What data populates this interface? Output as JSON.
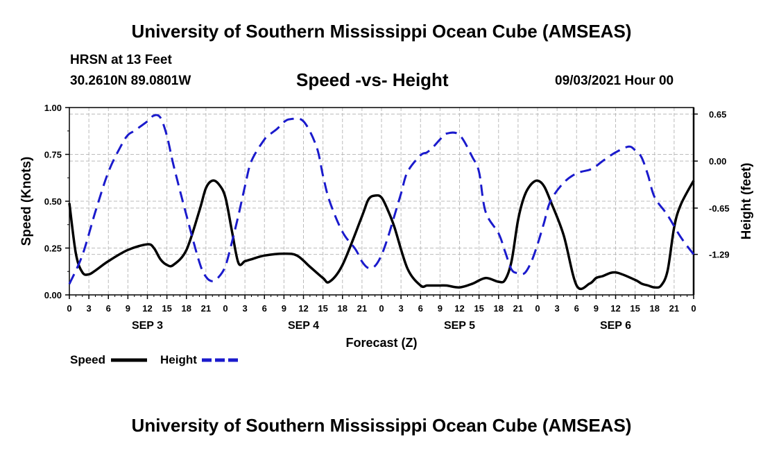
{
  "header": {
    "top_title": "University of Southern Mississippi Ocean Cube (AMSEAS)",
    "station": "HRSN at 13 Feet",
    "coords": "30.2610N  89.0801W",
    "chart_title": "Speed -vs- Height",
    "run_time": "09/03/2021 Hour 00"
  },
  "footer": {
    "bottom_title": "University of Southern Mississippi Ocean Cube (AMSEAS)"
  },
  "legend": {
    "speed_label": "Speed",
    "height_label": "Height"
  },
  "colors": {
    "speed": "#000000",
    "height": "#1a1acc",
    "grid": "#bbbbbb"
  },
  "chart_data": {
    "type": "line",
    "title": "Speed -vs- Height",
    "xlabel": "Forecast (Z)",
    "ylabel": "Speed (Knots)",
    "y2label": "Height (feet)",
    "xlim": [
      0,
      96
    ],
    "ylim": [
      0,
      1.0
    ],
    "y2lim": [
      -1.85,
      0.74
    ],
    "x_tick_values": [
      0,
      3,
      6,
      9,
      12,
      15,
      18,
      21,
      24,
      27,
      30,
      33,
      36,
      39,
      42,
      45,
      48,
      51,
      54,
      57,
      60,
      63,
      66,
      69,
      72,
      75,
      78,
      81,
      84,
      87,
      90,
      93,
      96
    ],
    "x_tick_labels": [
      "0",
      "3",
      "6",
      "9",
      "12",
      "15",
      "18",
      "21",
      "0",
      "3",
      "6",
      "9",
      "12",
      "15",
      "18",
      "21",
      "0",
      "3",
      "6",
      "9",
      "12",
      "15",
      "18",
      "21",
      "0",
      "3",
      "6",
      "9",
      "12",
      "15",
      "18",
      "21",
      "0"
    ],
    "day_labels": [
      {
        "label": "SEP 3",
        "x": 12
      },
      {
        "label": "SEP 4",
        "x": 36
      },
      {
        "label": "SEP 5",
        "x": 60
      },
      {
        "label": "SEP 6",
        "x": 84
      }
    ],
    "y_tick_values": [
      0,
      0.25,
      0.5,
      0.75,
      1.0
    ],
    "y_tick_labels": [
      "0.00",
      "0.25",
      "0.50",
      "0.75",
      "1.00"
    ],
    "y2_tick_values": [
      0.65,
      0.0,
      -0.65,
      -1.29
    ],
    "y2_tick_labels": [
      "0.65",
      "0.00",
      "-0.65",
      "-1.29"
    ],
    "grid": true,
    "series": [
      {
        "name": "Speed",
        "axis": "left",
        "style": "solid",
        "x": [
          0,
          1,
          2,
          3,
          4,
          6,
          9,
          12,
          13,
          14,
          15,
          16,
          18,
          20,
          21,
          22,
          23,
          24,
          25,
          26,
          27,
          28,
          30,
          33,
          35,
          37,
          39,
          40,
          42,
          45,
          46,
          47,
          48,
          49,
          50,
          52,
          54,
          55,
          56,
          57,
          58,
          60,
          62,
          64,
          66,
          67,
          68,
          69,
          70,
          71,
          72,
          73,
          74,
          76,
          78,
          80,
          81,
          82,
          84,
          87,
          88,
          89,
          90,
          91,
          92,
          93,
          94,
          96
        ],
        "y": [
          0.49,
          0.22,
          0.12,
          0.11,
          0.13,
          0.18,
          0.24,
          0.27,
          0.25,
          0.19,
          0.16,
          0.16,
          0.24,
          0.45,
          0.57,
          0.61,
          0.59,
          0.52,
          0.34,
          0.17,
          0.18,
          0.19,
          0.21,
          0.22,
          0.21,
          0.15,
          0.09,
          0.07,
          0.16,
          0.42,
          0.51,
          0.53,
          0.52,
          0.45,
          0.36,
          0.14,
          0.05,
          0.05,
          0.05,
          0.05,
          0.05,
          0.04,
          0.06,
          0.09,
          0.07,
          0.08,
          0.18,
          0.4,
          0.53,
          0.59,
          0.61,
          0.58,
          0.5,
          0.32,
          0.05,
          0.06,
          0.09,
          0.1,
          0.12,
          0.08,
          0.06,
          0.05,
          0.04,
          0.05,
          0.13,
          0.36,
          0.48,
          0.61
        ]
      },
      {
        "name": "Height",
        "axis": "right",
        "style": "dashed",
        "x": [
          0,
          2,
          4,
          6,
          8,
          9,
          10,
          12,
          13,
          14,
          15,
          16,
          18,
          20,
          21,
          22,
          23,
          24,
          25,
          26,
          27,
          28,
          30,
          31,
          32,
          33,
          34,
          36,
          38,
          39,
          40,
          42,
          44,
          45,
          46,
          47,
          48,
          49,
          50,
          51,
          52,
          54,
          55,
          56,
          57,
          58,
          60,
          62,
          63,
          64,
          66,
          67,
          68,
          69,
          70,
          71,
          72,
          73,
          74,
          76,
          78,
          80,
          81,
          82,
          84,
          86,
          87,
          88,
          89,
          90,
          92,
          94,
          96
        ],
        "y": [
          -1.7,
          -1.3,
          -0.7,
          -0.15,
          0.22,
          0.36,
          0.42,
          0.55,
          0.63,
          0.6,
          0.35,
          -0.05,
          -0.75,
          -1.4,
          -1.6,
          -1.66,
          -1.6,
          -1.45,
          -1.12,
          -0.75,
          -0.35,
          0.0,
          0.3,
          0.38,
          0.45,
          0.54,
          0.58,
          0.55,
          0.2,
          -0.2,
          -0.55,
          -0.98,
          -1.22,
          -1.39,
          -1.48,
          -1.45,
          -1.3,
          -1.05,
          -0.75,
          -0.45,
          -0.15,
          0.08,
          0.12,
          0.2,
          0.3,
          0.38,
          0.36,
          0.05,
          -0.15,
          -0.7,
          -1.0,
          -1.25,
          -1.5,
          -1.55,
          -1.55,
          -1.4,
          -1.15,
          -0.85,
          -0.55,
          -0.3,
          -0.17,
          -0.12,
          -0.07,
          0.0,
          0.12,
          0.2,
          0.15,
          0.05,
          -0.2,
          -0.5,
          -0.75,
          -1.05,
          -1.29
        ]
      }
    ]
  }
}
